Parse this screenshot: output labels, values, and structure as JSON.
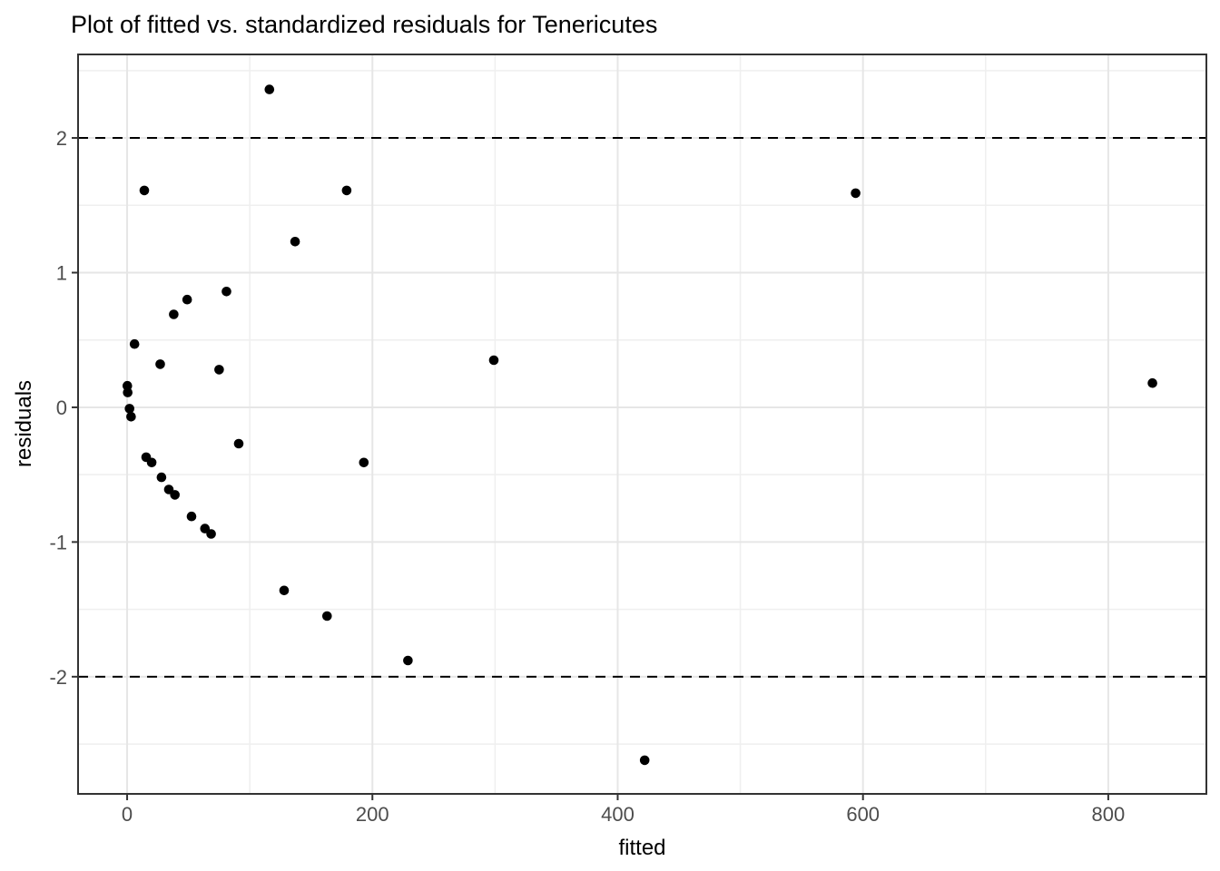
{
  "chart_data": {
    "type": "scatter",
    "title": "Plot of fitted vs. standardized residuals for Tenericutes",
    "xlabel": "fitted",
    "ylabel": "residuals",
    "xlim": [
      -40,
      880
    ],
    "ylim": [
      -2.87,
      2.62
    ],
    "x_ticks": [
      0,
      200,
      400,
      600,
      800
    ],
    "y_ticks": [
      -2,
      -1,
      0,
      1,
      2
    ],
    "x_minor_step": 100,
    "y_minor_step": 0.5,
    "grid": true,
    "legend": "none",
    "reference_lines": [
      {
        "y": 2,
        "style": "dashed"
      },
      {
        "y": -2,
        "style": "dashed"
      }
    ],
    "points": [
      [
        116,
        2.36
      ],
      [
        14,
        1.61
      ],
      [
        179,
        1.61
      ],
      [
        594,
        1.59
      ],
      [
        137,
        1.23
      ],
      [
        81,
        0.86
      ],
      [
        49,
        0.8
      ],
      [
        38,
        0.69
      ],
      [
        6,
        0.47
      ],
      [
        27,
        0.32
      ],
      [
        75,
        0.28
      ],
      [
        299,
        0.35
      ],
      [
        836,
        0.18
      ],
      [
        0.2,
        0.16
      ],
      [
        0.5,
        0.11
      ],
      [
        2,
        -0.01
      ],
      [
        3.2,
        -0.07
      ],
      [
        91,
        -0.27
      ],
      [
        15.5,
        -0.37
      ],
      [
        20,
        -0.41
      ],
      [
        28,
        -0.52
      ],
      [
        34,
        -0.61
      ],
      [
        39,
        -0.65
      ],
      [
        52.5,
        -0.81
      ],
      [
        63.5,
        -0.9
      ],
      [
        68.5,
        -0.94
      ],
      [
        128,
        -1.36
      ],
      [
        163,
        -1.55
      ],
      [
        193,
        -0.41
      ],
      [
        229,
        -1.88
      ],
      [
        422,
        -2.62
      ]
    ],
    "colors": {
      "background": "#ffffff",
      "panel_border": "#333333",
      "grid_major": "#e6e6e6",
      "grid_minor": "#efefef",
      "tick_mark": "#333333",
      "tick_label": "#4d4d4d",
      "point": "#000000",
      "reference_line": "#000000",
      "title": "#000000",
      "axis_title": "#000000"
    }
  }
}
